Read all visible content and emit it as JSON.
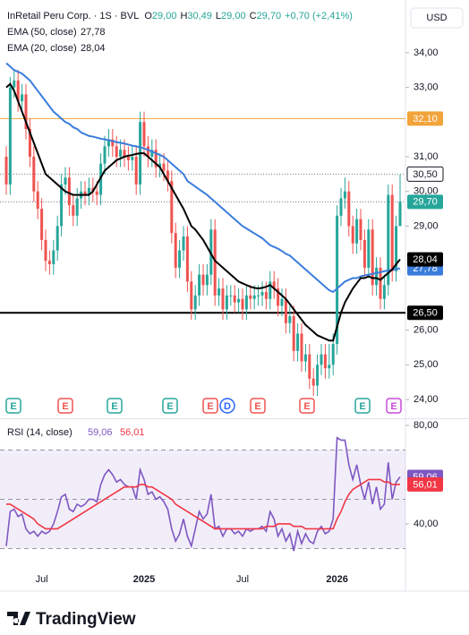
{
  "chart_data": [
    {
      "type": "candlestick",
      "symbol": "InRetail Peru Corp. · 1S · BVL",
      "ohlc": [
        {
          "key": "O",
          "value": "29,00"
        },
        {
          "key": "H",
          "value": "30,49"
        },
        {
          "key": "L",
          "value": "29,00"
        },
        {
          "key": "C",
          "value": "29,70"
        }
      ],
      "change": "+0,70 (+2,41%)",
      "currency": "USD",
      "up_color": "#26a69a",
      "down_color": "#ef5350",
      "categories": [
        null,
        null,
        null,
        null,
        null,
        null,
        null,
        null,
        null,
        "Jul",
        null,
        null,
        null,
        null,
        null,
        null,
        null,
        null,
        null,
        null,
        null,
        null,
        null,
        null,
        null,
        null,
        null,
        null,
        null,
        null,
        null,
        null,
        null,
        null,
        null,
        "2025",
        null,
        null,
        null,
        null,
        null,
        null,
        null,
        null,
        null,
        null,
        null,
        null,
        null,
        null,
        null,
        null,
        null,
        null,
        null,
        null,
        null,
        null,
        null,
        null,
        "Jul",
        null,
        null,
        null,
        null,
        null,
        null,
        null,
        null,
        null,
        null,
        null,
        null,
        null,
        null,
        null,
        null,
        null,
        null,
        null,
        null,
        null,
        null,
        null,
        "2026",
        null,
        null,
        null,
        null,
        null,
        null,
        null,
        null,
        null,
        null,
        null,
        null,
        null,
        null,
        null,
        null
      ],
      "open": [
        31.0,
        30.2,
        33.0,
        33.2,
        32.6,
        32.8,
        31.8,
        31.0,
        30.0,
        29.5,
        28.6,
        28.0,
        27.9,
        28.3,
        29.0,
        30.2,
        30.4,
        29.6,
        29.3,
        29.8,
        30.0,
        29.9,
        30.1,
        30.0,
        29.9,
        30.8,
        31.3,
        31.5,
        31.3,
        31.0,
        31.2,
        31.0,
        30.9,
        31.0,
        30.2,
        32.0,
        31.3,
        31.0,
        31.2,
        30.7,
        30.8,
        30.6,
        30.3,
        28.8,
        27.8,
        28.3,
        28.7,
        27.4,
        26.6,
        27.0,
        27.6,
        27.3,
        27.6,
        28.9,
        27.0,
        27.2,
        26.6,
        27.0,
        27.0,
        26.8,
        26.9,
        26.6,
        27.0,
        26.9,
        27.0,
        27.0,
        27.1,
        26.9,
        27.4,
        27.2,
        26.7,
        26.9,
        26.2,
        26.4,
        25.4,
        25.9,
        25.1,
        25.3,
        24.6,
        24.4,
        25.0,
        25.3,
        24.9,
        25.0,
        25.6,
        29.3,
        29.8,
        30.0,
        29.0,
        28.5,
        29.2,
        28.6,
        27.8,
        28.9,
        27.3,
        27.8,
        26.9,
        27.3,
        29.9,
        27.7,
        29.0
      ],
      "high": [
        31.3,
        33.3,
        33.5,
        33.5,
        33.1,
        33.1,
        32.1,
        31.3,
        30.3,
        29.8,
        28.9,
        28.3,
        28.6,
        29.3,
        30.5,
        30.7,
        30.7,
        29.9,
        30.1,
        30.3,
        30.3,
        30.4,
        30.4,
        30.3,
        31.1,
        31.6,
        31.8,
        31.8,
        31.6,
        31.5,
        31.5,
        31.3,
        31.3,
        31.3,
        32.3,
        32.3,
        31.6,
        31.5,
        31.5,
        31.1,
        31.1,
        30.9,
        30.6,
        29.1,
        28.6,
        29.0,
        29.0,
        27.7,
        27.3,
        27.9,
        27.9,
        27.9,
        29.2,
        29.2,
        27.5,
        27.5,
        27.3,
        27.3,
        27.3,
        27.2,
        27.2,
        27.3,
        27.3,
        27.3,
        27.3,
        27.4,
        27.4,
        27.7,
        27.7,
        27.5,
        27.2,
        27.2,
        26.7,
        26.7,
        26.2,
        26.2,
        25.6,
        25.6,
        24.9,
        25.3,
        25.6,
        25.6,
        25.6,
        25.9,
        29.6,
        30.1,
        30.4,
        30.3,
        29.3,
        29.5,
        29.5,
        28.9,
        29.2,
        29.2,
        28.1,
        28.1,
        27.6,
        30.2,
        30.2,
        29.3,
        30.49
      ],
      "low": [
        29.9,
        29.9,
        32.7,
        32.3,
        32.3,
        31.5,
        30.7,
        29.7,
        29.2,
        28.3,
        27.7,
        27.6,
        27.6,
        28.0,
        28.7,
        29.9,
        29.3,
        29.0,
        29.0,
        29.5,
        29.6,
        29.6,
        29.7,
        29.6,
        29.6,
        30.5,
        31.0,
        31.0,
        30.7,
        30.7,
        30.7,
        30.6,
        30.6,
        29.9,
        29.9,
        31.0,
        30.7,
        30.7,
        30.4,
        30.4,
        30.3,
        30.0,
        28.5,
        27.5,
        27.5,
        28.0,
        27.1,
        26.3,
        26.3,
        26.7,
        27.0,
        27.0,
        27.3,
        26.7,
        26.7,
        26.3,
        26.3,
        26.7,
        26.5,
        26.5,
        26.3,
        26.3,
        26.6,
        26.6,
        26.7,
        26.7,
        26.6,
        26.6,
        26.9,
        26.4,
        26.4,
        25.9,
        25.9,
        25.1,
        25.1,
        24.8,
        24.8,
        24.3,
        24.1,
        24.1,
        24.7,
        24.6,
        24.6,
        24.7,
        25.3,
        29.0,
        29.5,
        28.7,
        28.2,
        28.2,
        28.3,
        27.5,
        27.5,
        27.0,
        27.0,
        26.6,
        26.6,
        27.0,
        27.4,
        27.4,
        29.0
      ],
      "close": [
        30.2,
        33.0,
        33.2,
        32.6,
        32.8,
        31.8,
        31.0,
        30.0,
        29.5,
        28.6,
        28.0,
        27.9,
        28.3,
        29.0,
        30.2,
        30.4,
        29.6,
        29.3,
        29.8,
        30.0,
        29.9,
        30.1,
        30.0,
        29.9,
        30.8,
        31.3,
        31.5,
        31.3,
        31.0,
        31.2,
        31.0,
        30.9,
        31.0,
        30.2,
        32.0,
        31.3,
        31.0,
        31.2,
        30.7,
        30.8,
        30.6,
        30.3,
        28.8,
        27.8,
        28.3,
        28.7,
        27.4,
        26.6,
        27.0,
        27.6,
        27.3,
        27.6,
        28.9,
        27.0,
        27.2,
        26.6,
        27.0,
        27.0,
        26.8,
        26.9,
        26.6,
        27.0,
        26.9,
        27.0,
        27.0,
        27.1,
        26.9,
        27.4,
        27.2,
        26.7,
        26.9,
        26.2,
        26.4,
        25.4,
        25.9,
        25.1,
        25.3,
        24.6,
        24.4,
        25.0,
        25.3,
        24.9,
        25.0,
        25.6,
        29.3,
        29.8,
        30.0,
        29.0,
        28.5,
        29.2,
        28.6,
        27.8,
        28.9,
        27.3,
        27.8,
        26.9,
        27.3,
        29.9,
        27.7,
        29.0,
        29.7
      ],
      "series": [
        {
          "name": "EMA (50, close)",
          "color": "#3b7ddd",
          "last_label": "27,78",
          "values": [
            33.7,
            33.6,
            33.5,
            33.45,
            33.4,
            33.3,
            33.2,
            33.05,
            32.9,
            32.75,
            32.6,
            32.45,
            32.3,
            32.2,
            32.1,
            32.0,
            31.95,
            31.85,
            31.8,
            31.7,
            31.65,
            31.6,
            31.58,
            31.55,
            31.52,
            31.5,
            31.48,
            31.45,
            31.42,
            31.4,
            31.38,
            31.35,
            31.32,
            31.3,
            31.27,
            31.24,
            31.2,
            31.15,
            31.1,
            31.05,
            31.0,
            30.9,
            30.8,
            30.7,
            30.6,
            30.5,
            30.3,
            30.22,
            30.14,
            30.06,
            29.98,
            29.9,
            29.8,
            29.7,
            29.6,
            29.5,
            29.4,
            29.3,
            29.2,
            29.1,
            29.0,
            28.93,
            28.86,
            28.79,
            28.72,
            28.65,
            28.55,
            28.45,
            28.4,
            28.35,
            28.28,
            28.2,
            28.15,
            28.05,
            27.95,
            27.85,
            27.75,
            27.65,
            27.55,
            27.45,
            27.35,
            27.25,
            27.15,
            27.1,
            27.2,
            27.3,
            27.4,
            27.45,
            27.5,
            27.5,
            27.55,
            27.58,
            27.6,
            27.62,
            27.65,
            27.67,
            27.7,
            27.72,
            27.74,
            27.76,
            27.78
          ]
        },
        {
          "name": "EMA (20, close)",
          "color": "#000000",
          "last_label": "28,04",
          "values": [
            33.0,
            33.1,
            32.9,
            32.6,
            32.3,
            32.0,
            31.7,
            31.4,
            31.1,
            30.8,
            30.5,
            30.4,
            30.3,
            30.2,
            30.1,
            30.0,
            29.95,
            29.9,
            29.9,
            29.9,
            29.9,
            29.9,
            30.0,
            30.2,
            30.4,
            30.6,
            30.7,
            30.8,
            30.9,
            30.95,
            31.0,
            31.03,
            31.05,
            31.08,
            31.1,
            31.1,
            31.0,
            30.9,
            30.8,
            30.7,
            30.5,
            30.3,
            30.1,
            29.9,
            29.7,
            29.5,
            29.25,
            29.0,
            28.9,
            28.75,
            28.6,
            28.4,
            28.2,
            28.0,
            27.9,
            27.8,
            27.7,
            27.6,
            27.5,
            27.4,
            27.35,
            27.3,
            27.25,
            27.22,
            27.2,
            27.22,
            27.25,
            27.3,
            27.2,
            27.1,
            27.0,
            26.9,
            26.75,
            26.6,
            26.45,
            26.3,
            26.15,
            26.05,
            25.95,
            25.85,
            25.8,
            25.75,
            25.7,
            25.7,
            26.1,
            26.5,
            26.8,
            27.0,
            27.2,
            27.35,
            27.5,
            27.5,
            27.55,
            27.5,
            27.5,
            27.45,
            27.55,
            27.65,
            27.75,
            27.9,
            28.04
          ]
        }
      ],
      "hlines": [
        {
          "value": 32.1,
          "label": "32,10",
          "color": "#f2a33a",
          "style": "solid",
          "label_color": "#f2a33a"
        },
        {
          "value": 30.5,
          "label": "30,50",
          "color": "#787b86",
          "style": "dotted",
          "label_color": "#ffffff"
        },
        {
          "value": 29.7,
          "label": "29,70",
          "color": "#787b86",
          "style": "dotted",
          "label_color": "#26a69a"
        },
        {
          "value": 26.5,
          "label": "26,50",
          "color": "#000000",
          "style": "solid",
          "label_color": "#000000"
        }
      ],
      "events": [
        "E",
        "E",
        "E",
        "E",
        "E",
        "D",
        "E",
        "E",
        "E",
        "E"
      ],
      "ylim": [
        23.51,
        35.52
      ],
      "yticks": [
        {
          "value": 24,
          "label": "24,00"
        },
        {
          "value": 25,
          "label": "25,00"
        },
        {
          "value": 26,
          "label": "26,00"
        },
        {
          "value": 29,
          "label": "29,00"
        },
        {
          "value": 30,
          "label": "30,00"
        },
        {
          "value": 31,
          "label": "31,00"
        },
        {
          "value": 33,
          "label": "33,00"
        },
        {
          "value": 34,
          "label": "34,00"
        }
      ]
    },
    {
      "type": "line",
      "title": "RSI (14, close)",
      "series": [
        {
          "name": "RSI",
          "color": "#7e57c2",
          "last_label": "59,06",
          "values": [
            31,
            45,
            46,
            43,
            44,
            38,
            36,
            37,
            35,
            37,
            36,
            37,
            40,
            45,
            51,
            52,
            46,
            45,
            48,
            47,
            48,
            50,
            50,
            49,
            56,
            60,
            62,
            60,
            57,
            58,
            56,
            55,
            55,
            50,
            62,
            58,
            52,
            53,
            50,
            51,
            49,
            46,
            38,
            33,
            36,
            42,
            35,
            31,
            38,
            45,
            42,
            44,
            52,
            38,
            39,
            35,
            38,
            38,
            36,
            37,
            35,
            38,
            37,
            38,
            38,
            39,
            37,
            45,
            42,
            35,
            38,
            33,
            36,
            29,
            37,
            32,
            36,
            33,
            32,
            37,
            39,
            36,
            37,
            42,
            75,
            74,
            74,
            64,
            58,
            64,
            56,
            50,
            57,
            48,
            55,
            46,
            48,
            65,
            50,
            57,
            59.06
          ]
        },
        {
          "name": "RSI-based MA",
          "color": "#f23645",
          "last_label": "56,01",
          "values": [
            48,
            48,
            47,
            46,
            45,
            44,
            43,
            42,
            40,
            39,
            38,
            38,
            38,
            38,
            39,
            40,
            41,
            42,
            43,
            44,
            45,
            46,
            47,
            48,
            49,
            50,
            51,
            52,
            53,
            54,
            55,
            55,
            55,
            55,
            56,
            56,
            55,
            55,
            54,
            53,
            52,
            51,
            50,
            48,
            47,
            46,
            45,
            44,
            43,
            42,
            41,
            40,
            39,
            38,
            38,
            38,
            38,
            38,
            38,
            38,
            38,
            38,
            38,
            38,
            38,
            38,
            39,
            39,
            39,
            40,
            40,
            40,
            40,
            39,
            39,
            39,
            38,
            38,
            38,
            38,
            38,
            38,
            38,
            38,
            42,
            45,
            49,
            52,
            54,
            55,
            56,
            57,
            58,
            58,
            58,
            58,
            57,
            57,
            56,
            56,
            56.01
          ]
        }
      ],
      "levels": [
        70,
        50,
        30
      ],
      "ylim": [
        21.8,
        81.8
      ],
      "yticks": [
        {
          "value": 80,
          "label": "80,00"
        },
        {
          "value": 40,
          "label": "40,00"
        }
      ]
    }
  ],
  "footer": "TradingView"
}
